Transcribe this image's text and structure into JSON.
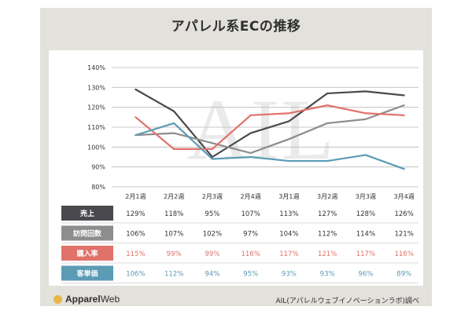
{
  "title": "アパレル系ECの推移",
  "watermark": "AIL",
  "logo": {
    "name_bold": "Apparel",
    "name_light": "Web"
  },
  "source": "AIL(アパレルウェブイノベーションラボ)調べ",
  "chart_data": {
    "type": "line",
    "categories": [
      "2月1週",
      "2月2週",
      "2月3週",
      "2月4週",
      "3月1週",
      "3月2週",
      "3月3週",
      "3月4週"
    ],
    "yticks": [
      "140%",
      "130%",
      "120%",
      "110%",
      "100%",
      "90%",
      "80%"
    ],
    "ylim": [
      80,
      140
    ],
    "grid": true,
    "series": [
      {
        "name": "売上",
        "color": "#4a4a4e",
        "values": [
          129,
          118,
          95,
          107,
          113,
          127,
          128,
          126
        ],
        "labels": [
          "129%",
          "118%",
          "95%",
          "107%",
          "113%",
          "127%",
          "128%",
          "126%"
        ]
      },
      {
        "name": "訪問回数",
        "color": "#8d8d8d",
        "values": [
          106,
          107,
          102,
          97,
          104,
          112,
          114,
          121
        ],
        "labels": [
          "106%",
          "107%",
          "102%",
          "97%",
          "104%",
          "112%",
          "114%",
          "121%"
        ]
      },
      {
        "name": "購入率",
        "color": "#e0726a",
        "values": [
          115,
          99,
          99,
          116,
          117,
          121,
          117,
          116
        ],
        "labels": [
          "115%",
          "99%",
          "99%",
          "116%",
          "117%",
          "121%",
          "117%",
          "116%"
        ]
      },
      {
        "name": "客単価",
        "color": "#5b9bb5",
        "values": [
          106,
          112,
          94,
          95,
          93,
          93,
          96,
          89
        ],
        "labels": [
          "106%",
          "112%",
          "94%",
          "95%",
          "93%",
          "93%",
          "96%",
          "89%"
        ]
      }
    ]
  }
}
